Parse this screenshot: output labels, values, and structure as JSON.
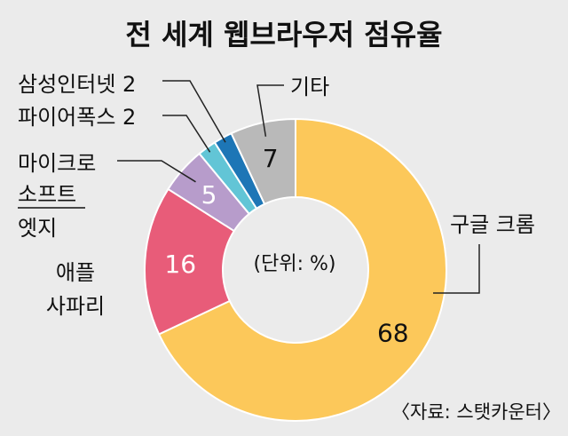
{
  "chart_data": {
    "type": "pie",
    "title": "전 세계 웹브라우저 점유율",
    "unit_note": "(단위: %)",
    "source": "〈자료: 스탯카운터〉",
    "slices": [
      {
        "name": "구글 크롬",
        "value": 68,
        "value_label": "68",
        "color": "#fcc85a"
      },
      {
        "name": "애플 사파리",
        "value": 16,
        "value_label": "16",
        "color": "#e85c79"
      },
      {
        "name": "마이크로소프트 엣지",
        "value": 5,
        "value_label": "5",
        "color": "#b79ccb"
      },
      {
        "name": "파이어폭스",
        "value": 2,
        "value_label": "2",
        "color": "#62c5d6"
      },
      {
        "name": "삼성인터넷",
        "value": 2,
        "value_label": "2",
        "color": "#1d76b6"
      },
      {
        "name": "기타",
        "value": 7,
        "value_label": "7",
        "color": "#b9b9b9"
      }
    ],
    "legend_lines": {
      "chrome": [
        "구글 크롬"
      ],
      "safari": [
        "애플",
        "사파리"
      ],
      "edge": [
        "마이크로",
        "소프트",
        "엣지"
      ],
      "firefox": [
        "파이어폭스 2"
      ],
      "samsung": [
        "삼성인터넷 2"
      ],
      "etc": [
        "기타"
      ]
    },
    "legend": "none"
  }
}
